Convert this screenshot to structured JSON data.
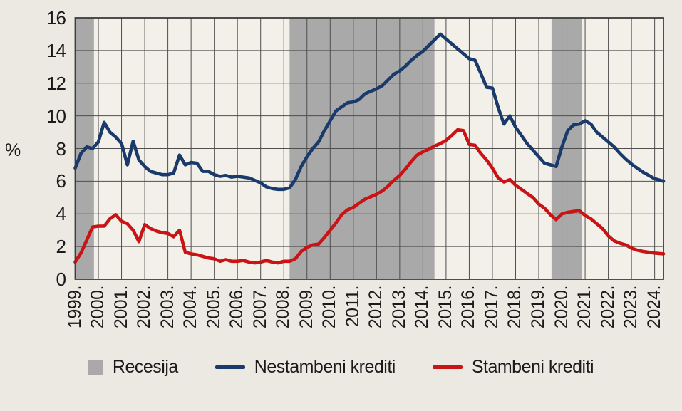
{
  "chart_data": {
    "type": "line",
    "title": "",
    "ylabel": "%",
    "ylim": [
      0,
      16
    ],
    "yticks": [
      0,
      2,
      4,
      6,
      8,
      10,
      12,
      14,
      16
    ],
    "xlim": [
      1999,
      2024.38
    ],
    "xtick_years": [
      1999,
      2000,
      2001,
      2002,
      2003,
      2004,
      2005,
      2006,
      2007,
      2008,
      2009,
      2010,
      2011,
      2012,
      2013,
      2014,
      2015,
      2016,
      2017,
      2018,
      2019,
      2020,
      2021,
      2022,
      2023,
      2024
    ],
    "xtick_labels": [
      "1999.",
      "2000.",
      "2001.",
      "2002.",
      "2003.",
      "2004.",
      "2005.",
      "2006.",
      "2007.",
      "2008.",
      "2009.",
      "2010.",
      "2011.",
      "2012.",
      "2013.",
      "2014.",
      "2015.",
      "2016.",
      "2017.",
      "2018.",
      "2019.",
      "2020.",
      "2021.",
      "2022.",
      "2023.",
      "2024."
    ],
    "grid": true,
    "legend_position": "bottom",
    "recession_label": "Recesija",
    "recession_color": "#a9a9a9",
    "recession_bands": [
      [
        1999.0,
        1999.81
      ],
      [
        2008.25,
        2014.5
      ],
      [
        2019.55,
        2020.85
      ]
    ],
    "x": [
      1999.0,
      1999.25,
      1999.5,
      1999.75,
      2000.0,
      2000.25,
      2000.5,
      2000.75,
      2001.0,
      2001.25,
      2001.5,
      2001.75,
      2002.0,
      2002.25,
      2002.5,
      2002.75,
      2003.0,
      2003.25,
      2003.5,
      2003.75,
      2004.0,
      2004.25,
      2004.5,
      2004.75,
      2005.0,
      2005.25,
      2005.5,
      2005.75,
      2006.0,
      2006.25,
      2006.5,
      2006.75,
      2007.0,
      2007.25,
      2007.5,
      2007.75,
      2008.0,
      2008.25,
      2008.5,
      2008.75,
      2009.0,
      2009.25,
      2009.5,
      2009.75,
      2010.0,
      2010.25,
      2010.5,
      2010.75,
      2011.0,
      2011.25,
      2011.5,
      2011.75,
      2012.0,
      2012.25,
      2012.5,
      2012.75,
      2013.0,
      2013.25,
      2013.5,
      2013.75,
      2014.0,
      2014.25,
      2014.5,
      2014.75,
      2015.0,
      2015.25,
      2015.5,
      2015.75,
      2016.0,
      2016.25,
      2016.5,
      2016.75,
      2017.0,
      2017.25,
      2017.5,
      2017.75,
      2018.0,
      2018.25,
      2018.5,
      2018.75,
      2019.0,
      2019.25,
      2019.5,
      2019.75,
      2020.0,
      2020.25,
      2020.5,
      2020.75,
      2021.0,
      2021.25,
      2021.5,
      2021.75,
      2022.0,
      2022.25,
      2022.5,
      2022.75,
      2023.0,
      2023.25,
      2023.5,
      2023.75,
      2024.0,
      2024.38
    ],
    "series": [
      {
        "name": "Nestambeni krediti",
        "color": "#1a3a6b",
        "values": [
          6.8,
          7.7,
          8.1,
          8.0,
          8.4,
          9.6,
          9.0,
          8.7,
          8.3,
          7.0,
          8.45,
          7.3,
          6.9,
          6.6,
          6.5,
          6.4,
          6.4,
          6.5,
          7.6,
          7.0,
          7.15,
          7.1,
          6.6,
          6.6,
          6.4,
          6.3,
          6.35,
          6.25,
          6.3,
          6.25,
          6.2,
          6.05,
          5.9,
          5.65,
          5.55,
          5.5,
          5.5,
          5.6,
          6.1,
          6.9,
          7.5,
          8.0,
          8.4,
          9.1,
          9.7,
          10.3,
          10.55,
          10.8,
          10.85,
          11.0,
          11.35,
          11.5,
          11.65,
          11.85,
          12.2,
          12.55,
          12.75,
          13.05,
          13.4,
          13.7,
          13.95,
          14.3,
          14.65,
          15.0,
          14.7,
          14.4,
          14.1,
          13.8,
          13.5,
          13.4,
          12.6,
          11.75,
          11.7,
          10.5,
          9.5,
          10.0,
          9.3,
          8.8,
          8.3,
          7.9,
          7.5,
          7.1,
          7.0,
          6.9,
          8.1,
          9.1,
          9.45,
          9.5,
          9.7,
          9.5,
          9.0,
          8.7,
          8.4,
          8.1,
          7.7,
          7.35,
          7.05,
          6.8,
          6.55,
          6.35,
          6.15,
          6.0
        ]
      },
      {
        "name": "Stambeni krediti",
        "color": "#c91315",
        "values": [
          1.05,
          1.6,
          2.4,
          3.2,
          3.25,
          3.25,
          3.7,
          3.95,
          3.55,
          3.4,
          3.0,
          2.3,
          3.35,
          3.1,
          2.95,
          2.85,
          2.8,
          2.6,
          3.0,
          1.65,
          1.55,
          1.5,
          1.4,
          1.3,
          1.25,
          1.1,
          1.2,
          1.1,
          1.1,
          1.15,
          1.05,
          1.0,
          1.05,
          1.15,
          1.05,
          1.0,
          1.1,
          1.1,
          1.25,
          1.7,
          1.95,
          2.1,
          2.15,
          2.55,
          3.0,
          3.45,
          3.95,
          4.25,
          4.4,
          4.65,
          4.9,
          5.05,
          5.2,
          5.4,
          5.7,
          6.05,
          6.35,
          6.75,
          7.2,
          7.6,
          7.8,
          7.95,
          8.15,
          8.3,
          8.5,
          8.8,
          9.15,
          9.1,
          8.25,
          8.2,
          7.7,
          7.3,
          6.8,
          6.2,
          5.95,
          6.1,
          5.75,
          5.5,
          5.25,
          5.0,
          4.6,
          4.35,
          3.95,
          3.65,
          4.0,
          4.1,
          4.15,
          4.2,
          3.9,
          3.7,
          3.4,
          3.1,
          2.65,
          2.35,
          2.2,
          2.1,
          1.9,
          1.78,
          1.7,
          1.65,
          1.6,
          1.55
        ]
      }
    ],
    "colors": {
      "background": "#ece9e2",
      "plot_background": "#f2f0e9",
      "gridline": "#4e4e4e",
      "border": "#3c3c3c",
      "text": "#1a1a1a"
    }
  }
}
